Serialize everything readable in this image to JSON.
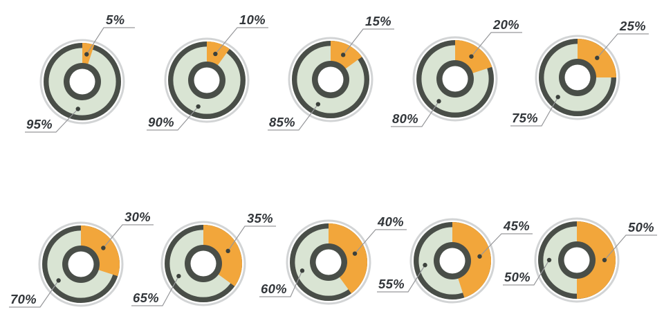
{
  "chart_data": {
    "type": "pie",
    "subtype": "donut-percentage-grid",
    "unit": "%",
    "grid": {
      "rows": 2,
      "cols": 5
    },
    "legend": "none",
    "palette": {
      "orange": "#F2A63B",
      "green": "#D9E4D3",
      "ring_dark": "#494E48",
      "ring_outer_gray": "#D2D4D5",
      "white": "#FFFFFF",
      "dot": "#3C413C",
      "line": "#96979A",
      "label_text": "#32363A"
    },
    "charts": [
      {
        "orange_pct": 5,
        "green_pct": 95,
        "orange_label": "5%",
        "green_label": "95%",
        "center": [
          119,
          118
        ],
        "orange_elbow": [
          31,
          -78
        ],
        "green_elbow": [
          -38,
          73
        ]
      },
      {
        "orange_pct": 10,
        "green_pct": 90,
        "orange_label": "10%",
        "green_label": "90%",
        "center": [
          299,
          116
        ],
        "orange_elbow": [
          44,
          -76
        ],
        "green_elbow": [
          -42,
          72
        ]
      },
      {
        "orange_pct": 15,
        "green_pct": 85,
        "orange_label": "15%",
        "green_label": "85%",
        "center": [
          478,
          115
        ],
        "orange_elbow": [
          47,
          -73
        ],
        "green_elbow": [
          -46,
          73
        ]
      },
      {
        "orange_pct": 20,
        "green_pct": 80,
        "orange_label": "20%",
        "green_label": "80%",
        "center": [
          658,
          114
        ],
        "orange_elbow": [
          52,
          -67
        ],
        "green_elbow": [
          -48,
          69
        ]
      },
      {
        "orange_pct": 25,
        "green_pct": 75,
        "orange_label": "25%",
        "green_label": "75%",
        "center": [
          835,
          112
        ],
        "orange_elbow": [
          58,
          -63
        ],
        "green_elbow": [
          -52,
          70
        ]
      },
      {
        "orange_pct": 30,
        "green_pct": 70,
        "orange_label": "30%",
        "green_label": "70%",
        "center": [
          117,
          382
        ],
        "orange_elbow": [
          60,
          -57
        ],
        "green_elbow": [
          -59,
          62
        ]
      },
      {
        "orange_pct": 35,
        "green_pct": 65,
        "orange_label": "35%",
        "green_label": "65%",
        "center": [
          294,
          381
        ],
        "orange_elbow": [
          60,
          -54
        ],
        "green_elbow": [
          -59,
          61
        ]
      },
      {
        "orange_pct": 40,
        "green_pct": 60,
        "orange_label": "40%",
        "green_label": "60%",
        "center": [
          475,
          379
        ],
        "orange_elbow": [
          68,
          -47
        ],
        "green_elbow": [
          -55,
          50
        ]
      },
      {
        "orange_pct": 45,
        "green_pct": 55,
        "orange_label": "45%",
        "green_label": "55%",
        "center": [
          654,
          377
        ],
        "orange_elbow": [
          71,
          -39
        ],
        "green_elbow": [
          -64,
          45
        ]
      },
      {
        "orange_pct": 50,
        "green_pct": 50,
        "orange_label": "50%",
        "green_label": "50%",
        "center": [
          834,
          376
        ],
        "orange_elbow": [
          71,
          -36
        ],
        "green_elbow": [
          -62,
          36
        ]
      }
    ]
  }
}
